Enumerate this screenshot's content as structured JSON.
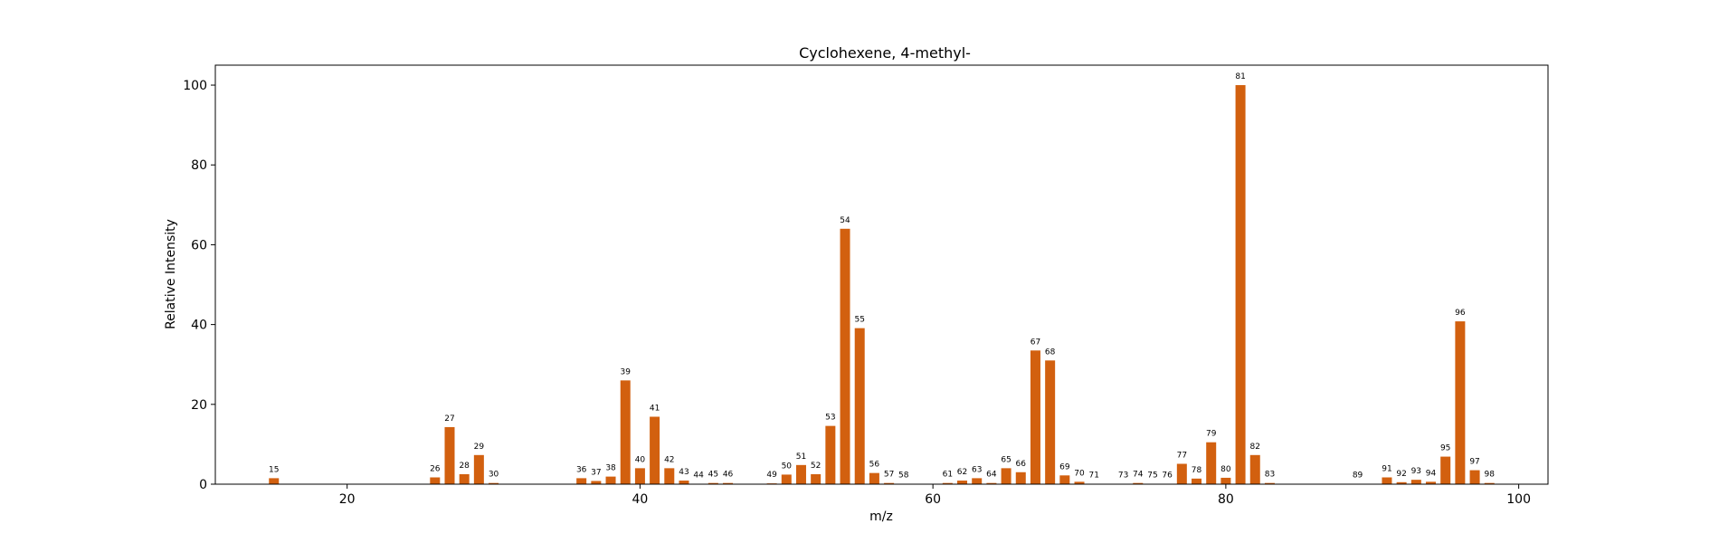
{
  "chart_data": {
    "type": "bar",
    "title": "Cyclohexene, 4-methyl-",
    "xlabel": "m/z",
    "ylabel": "Relative Intensity",
    "xlim": [
      11,
      102
    ],
    "ylim": [
      0,
      105
    ],
    "xticks": [
      20,
      40,
      60,
      80,
      100
    ],
    "yticks": [
      0,
      20,
      40,
      60,
      80,
      100
    ],
    "bar_color": "#D2600F",
    "grid": false,
    "x": [
      15,
      26,
      27,
      28,
      29,
      30,
      36,
      37,
      38,
      39,
      40,
      41,
      42,
      43,
      44,
      45,
      46,
      49,
      50,
      51,
      52,
      53,
      54,
      55,
      56,
      57,
      58,
      61,
      62,
      63,
      64,
      65,
      66,
      67,
      68,
      69,
      70,
      71,
      73,
      74,
      75,
      76,
      77,
      78,
      79,
      80,
      81,
      82,
      83,
      89,
      91,
      92,
      93,
      94,
      95,
      96,
      97,
      98
    ],
    "values": [
      1.5,
      1.7,
      14.3,
      2.5,
      7.3,
      0.3,
      1.5,
      0.8,
      1.9,
      26.0,
      4.0,
      16.9,
      4.0,
      0.9,
      0.1,
      0.3,
      0.3,
      0.2,
      2.4,
      4.8,
      2.5,
      14.6,
      64.0,
      39.1,
      2.8,
      0.3,
      0.1,
      0.3,
      0.9,
      1.5,
      0.3,
      4.0,
      3.0,
      33.5,
      31.0,
      2.2,
      0.6,
      0.1,
      0.1,
      0.3,
      0.1,
      0.1,
      5.1,
      1.4,
      10.5,
      1.6,
      100.0,
      7.3,
      0.3,
      0.1,
      1.7,
      0.5,
      1.1,
      0.6,
      6.9,
      40.8,
      3.5,
      0.3
    ]
  }
}
